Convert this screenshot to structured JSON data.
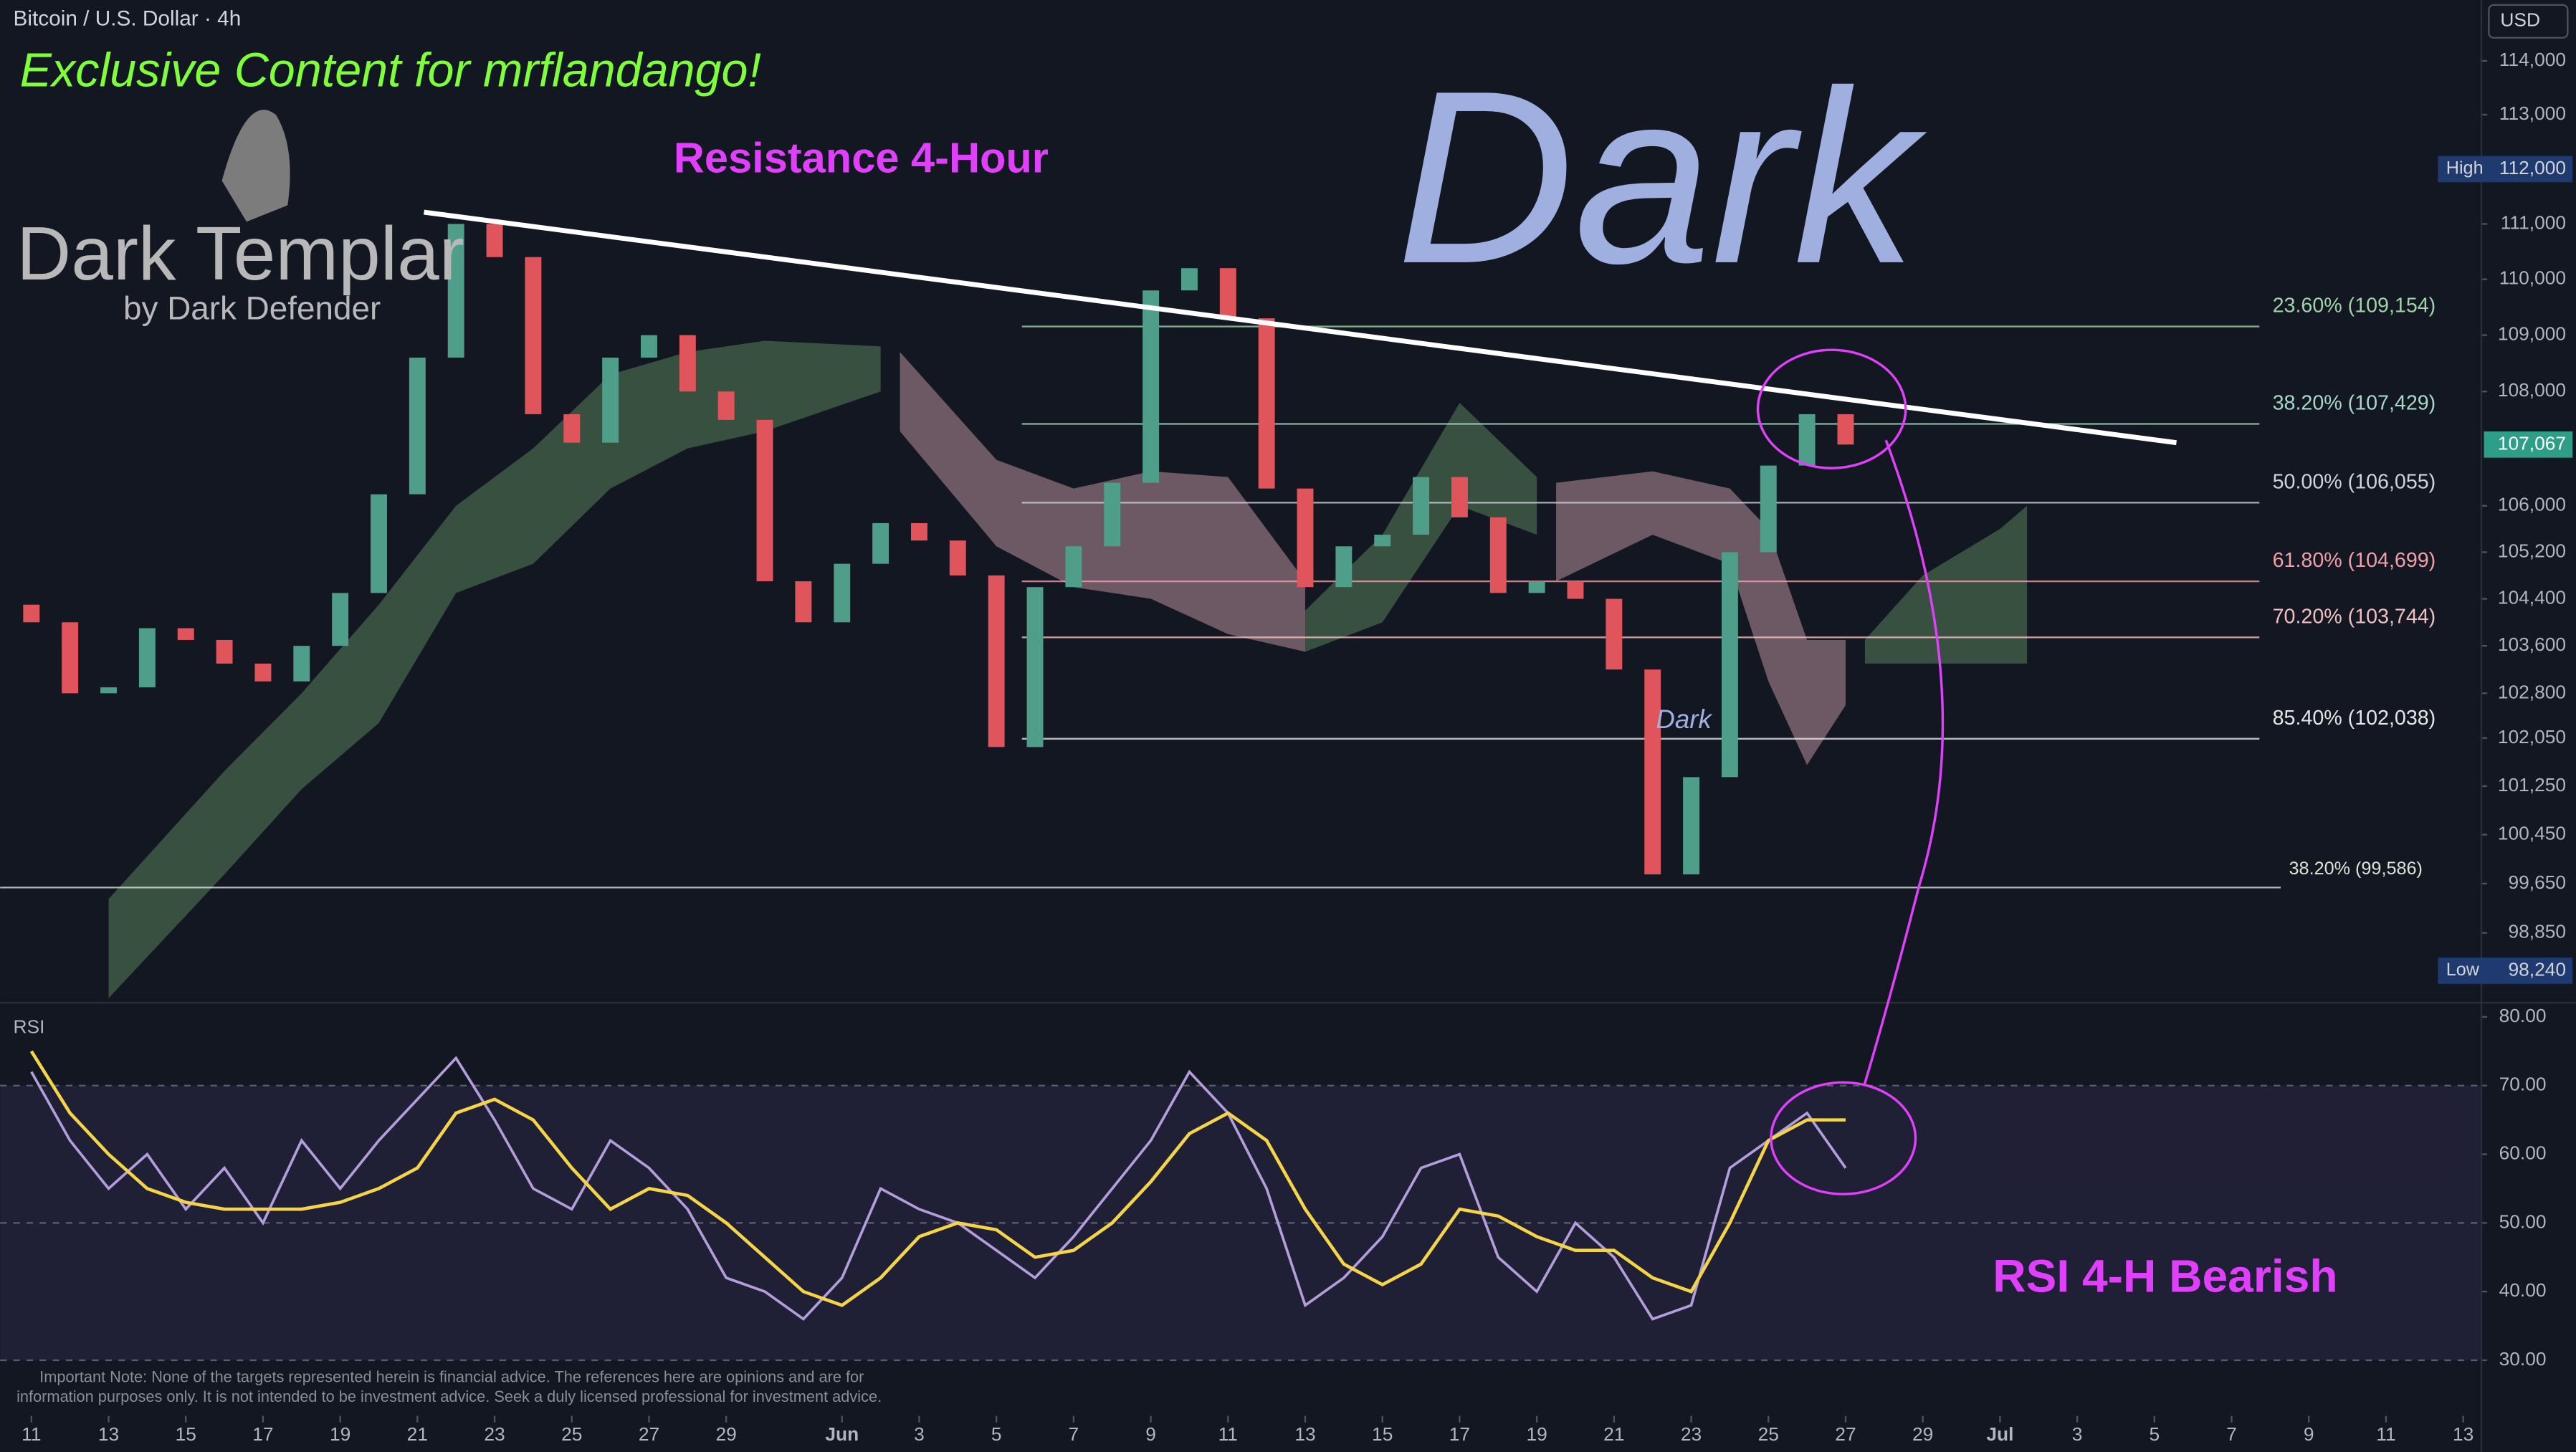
{
  "chart_data": [
    {
      "type": "candlestick",
      "title": "Bitcoin / U.S. Dollar · 4h",
      "currency": "USD",
      "up_color": "#4f9e8a",
      "down_color": "#e0555b",
      "log_scale": true,
      "xlim": [
        10.19,
        74.45
      ],
      "ylim": [
        97740,
        115140
      ],
      "yticks": [
        {
          "value": 114000,
          "label": "114,000"
        },
        {
          "value": 113000,
          "label": "113,000"
        },
        {
          "value": 111000,
          "label": "111,000"
        },
        {
          "value": 110000,
          "label": "110,000"
        },
        {
          "value": 109000,
          "label": "109,000"
        },
        {
          "value": 108000,
          "label": "108,000"
        },
        {
          "value": 106000,
          "label": "106,000"
        },
        {
          "value": 105200,
          "label": "105,200"
        },
        {
          "value": 104400,
          "label": "104,400"
        },
        {
          "value": 103600,
          "label": "103,600"
        },
        {
          "value": 102800,
          "label": "102,800"
        },
        {
          "value": 102050,
          "label": "102,050"
        },
        {
          "value": 101250,
          "label": "101,250"
        },
        {
          "value": 100450,
          "label": "100,450"
        },
        {
          "value": 99650,
          "label": "99,650"
        },
        {
          "value": 98850,
          "label": "98,850"
        }
      ],
      "x": [
        11,
        12,
        13,
        14,
        15,
        16,
        17,
        18,
        19,
        20,
        21,
        22,
        23,
        24,
        25,
        26,
        27,
        28,
        29,
        30,
        31,
        32,
        33,
        34,
        35,
        36,
        37,
        38,
        39,
        40,
        41,
        42,
        43,
        44,
        45,
        46,
        47,
        48,
        49,
        50,
        51,
        52,
        53,
        54,
        55,
        56,
        57,
        58
      ],
      "open": [
        104300,
        104000,
        102800,
        102900,
        103900,
        103700,
        103300,
        103000,
        103600,
        104500,
        106200,
        108600,
        111000,
        110400,
        107600,
        107100,
        108600,
        109000,
        108000,
        107500,
        104700,
        104000,
        105000,
        105700,
        105400,
        104800,
        101900,
        104600,
        105300,
        106400,
        109800,
        110200,
        109300,
        106300,
        104600,
        105300,
        105500,
        106500,
        105800,
        104500,
        104700,
        104400,
        103200,
        99800,
        101400,
        105200,
        106700,
        107600
      ],
      "high": {
        "name": "High",
        "value": 112000,
        "label": "112,000"
      },
      "low": {
        "name": "Low",
        "value": 98240,
        "label": "98,240"
      },
      "close": [
        104000,
        102800,
        102900,
        103900,
        103700,
        103300,
        103000,
        103600,
        104500,
        106200,
        108600,
        111000,
        110400,
        107600,
        107100,
        108600,
        109000,
        108000,
        107500,
        104700,
        104000,
        105000,
        105700,
        105400,
        104800,
        101900,
        104600,
        105300,
        106400,
        109800,
        110200,
        109300,
        106300,
        104600,
        105300,
        105500,
        106500,
        105800,
        104500,
        104700,
        104400,
        103200,
        99800,
        101400,
        105200,
        106700,
        107600,
        107067
      ],
      "cloud": [
        {
          "color": "#3e5a45",
          "x": [
            13,
            16,
            18,
            20,
            22,
            24,
            26,
            28,
            30,
            33
          ],
          "upper": [
            99400,
            101500,
            102800,
            104300,
            106000,
            107000,
            108300,
            108700,
            108900,
            108800
          ],
          "lower": [
            97800,
            99800,
            101200,
            102300,
            104500,
            105000,
            106300,
            107000,
            107300,
            108000
          ]
        },
        {
          "color": "#7d6570",
          "x": [
            33.5,
            36,
            38,
            40,
            42,
            44
          ],
          "upper": [
            108700,
            106800,
            106300,
            106600,
            106500,
            104700
          ],
          "lower": [
            107300,
            105300,
            104600,
            104400,
            103800,
            103500
          ]
        },
        {
          "color": "#3e5a45",
          "x": [
            44,
            46,
            48,
            50
          ],
          "upper": [
            104200,
            105500,
            107800,
            106500
          ],
          "lower": [
            103500,
            104000,
            106000,
            105500
          ]
        },
        {
          "color": "#7d6570",
          "x": [
            50.5,
            53,
            55,
            56,
            57,
            58
          ],
          "upper": [
            106400,
            106600,
            106300,
            105600,
            103700,
            103700
          ],
          "lower": [
            104700,
            105500,
            105000,
            103000,
            101600,
            102600
          ]
        },
        {
          "color": "#3e5a45",
          "x": [
            58.5,
            60,
            62,
            62.7
          ],
          "upper": [
            103700,
            104800,
            105600,
            106000
          ],
          "lower": [
            103300,
            103300,
            103300,
            103300
          ]
        }
      ],
      "trendline": {
        "color": "#ffffff",
        "x": [
          21.17,
          66.57
        ],
        "y": [
          111214,
          107100
        ]
      },
      "fib_levels": [
        {
          "value": 109154,
          "label": "23.60% (109,154)",
          "color": "#9fd3a8"
        },
        {
          "value": 107429,
          "label": "38.20% (107,429)",
          "color": "#a8d8c8"
        },
        {
          "value": 106055,
          "label": "50.00% (106,055)",
          "color": "#d0d3da"
        },
        {
          "value": 104699,
          "label": "61.80% (104,699)",
          "color": "#f0a0a8"
        },
        {
          "value": 103744,
          "label": "70.20% (103,744)",
          "color": "#f0c0c0"
        },
        {
          "value": 102038,
          "label": "85.40% (102,038)",
          "color": "#e6e6e6"
        },
        {
          "value": 99586,
          "label": "38.20% (99,586)",
          "color": "#d8e6d8",
          "extend_left": true
        }
      ],
      "fib_start": 36.66,
      "fib_end": 68.72,
      "last": {
        "value": 107067,
        "label": "107,067"
      }
    },
    {
      "type": "line",
      "title": "RSI",
      "xlim": [
        10.19,
        74.45
      ],
      "ylim": [
        21.9,
        81.7
      ],
      "yticks": [
        {
          "value": 80,
          "label": "80.00"
        },
        {
          "value": 70,
          "label": "70.00"
        },
        {
          "value": 60,
          "label": "60.00"
        },
        {
          "value": 50,
          "label": "50.00"
        },
        {
          "value": 40,
          "label": "40.00"
        },
        {
          "value": 30,
          "label": "30.00"
        }
      ],
      "band": [
        70,
        30
      ],
      "dashed_levels": [
        70,
        50,
        30
      ],
      "xticks": [
        {
          "value": 11,
          "label": "11"
        },
        {
          "value": 13,
          "label": "13"
        },
        {
          "value": 15,
          "label": "15"
        },
        {
          "value": 17,
          "label": "17"
        },
        {
          "value": 19,
          "label": "19"
        },
        {
          "value": 21,
          "label": "21"
        },
        {
          "value": 23,
          "label": "23"
        },
        {
          "value": 25,
          "label": "25"
        },
        {
          "value": 27,
          "label": "27"
        },
        {
          "value": 29,
          "label": "29"
        },
        {
          "value": 32,
          "label": "Jun"
        },
        {
          "value": 34,
          "label": "3"
        },
        {
          "value": 36,
          "label": "5"
        },
        {
          "value": 38,
          "label": "7"
        },
        {
          "value": 40,
          "label": "9"
        },
        {
          "value": 42,
          "label": "11"
        },
        {
          "value": 44,
          "label": "13"
        },
        {
          "value": 46,
          "label": "15"
        },
        {
          "value": 48,
          "label": "17"
        },
        {
          "value": 50,
          "label": "19"
        },
        {
          "value": 52,
          "label": "21"
        },
        {
          "value": 54,
          "label": "23"
        },
        {
          "value": 56,
          "label": "25"
        },
        {
          "value": 58,
          "label": "27"
        },
        {
          "value": 60,
          "label": "29"
        },
        {
          "value": 62,
          "label": "Jul"
        },
        {
          "value": 64,
          "label": "3"
        },
        {
          "value": 66,
          "label": "5"
        },
        {
          "value": 68,
          "label": "7"
        },
        {
          "value": 70,
          "label": "9"
        },
        {
          "value": 72,
          "label": "11"
        },
        {
          "value": 74,
          "label": "13"
        }
      ],
      "x": [
        11,
        12,
        13,
        14,
        15,
        16,
        17,
        18,
        19,
        20,
        21,
        22,
        23,
        24,
        25,
        26,
        27,
        28,
        29,
        30,
        31,
        32,
        33,
        34,
        35,
        36,
        37,
        38,
        39,
        40,
        41,
        42,
        43,
        44,
        45,
        46,
        47,
        48,
        49,
        50,
        51,
        52,
        53,
        54,
        55,
        56,
        57,
        58
      ],
      "series": [
        {
          "color": "#b39ddb",
          "values": [
            72,
            62,
            55,
            60,
            52,
            58,
            50,
            62,
            55,
            62,
            68,
            74,
            65,
            55,
            52,
            62,
            58,
            52,
            42,
            40,
            36,
            42,
            55,
            52,
            50,
            46,
            42,
            48,
            55,
            62,
            72,
            66,
            55,
            38,
            42,
            48,
            58,
            60,
            45,
            40,
            50,
            45,
            36,
            38,
            58,
            62,
            66,
            58
          ]
        },
        {
          "color": "#f5d547",
          "values": [
            75,
            66,
            60,
            55,
            53,
            52,
            52,
            52,
            53,
            55,
            58,
            66,
            68,
            65,
            58,
            52,
            55,
            54,
            50,
            45,
            40,
            38,
            42,
            48,
            50,
            49,
            45,
            46,
            50,
            56,
            63,
            66,
            62,
            52,
            44,
            41,
            44,
            52,
            51,
            48,
            46,
            46,
            42,
            40,
            50,
            62,
            65,
            65
          ]
        }
      ]
    }
  ],
  "annotations": {
    "exclusive": "Exclusive Content for mrflandango!",
    "logo_title": "Dark Templar",
    "logo_subtitle": "by Dark Defender",
    "resistance": "Resistance 4-Hour",
    "watermark": "Dark",
    "small_mark": "Dark",
    "rsi_note": "RSI 4-H Bearish",
    "disclaimer": [
      "Important Note: None of the targets represented herein is financial advice. The references here are opinions and are for",
      "information purposes only. It is not intended to be investment advice. Seek a duly licensed professional for investment advice."
    ]
  }
}
